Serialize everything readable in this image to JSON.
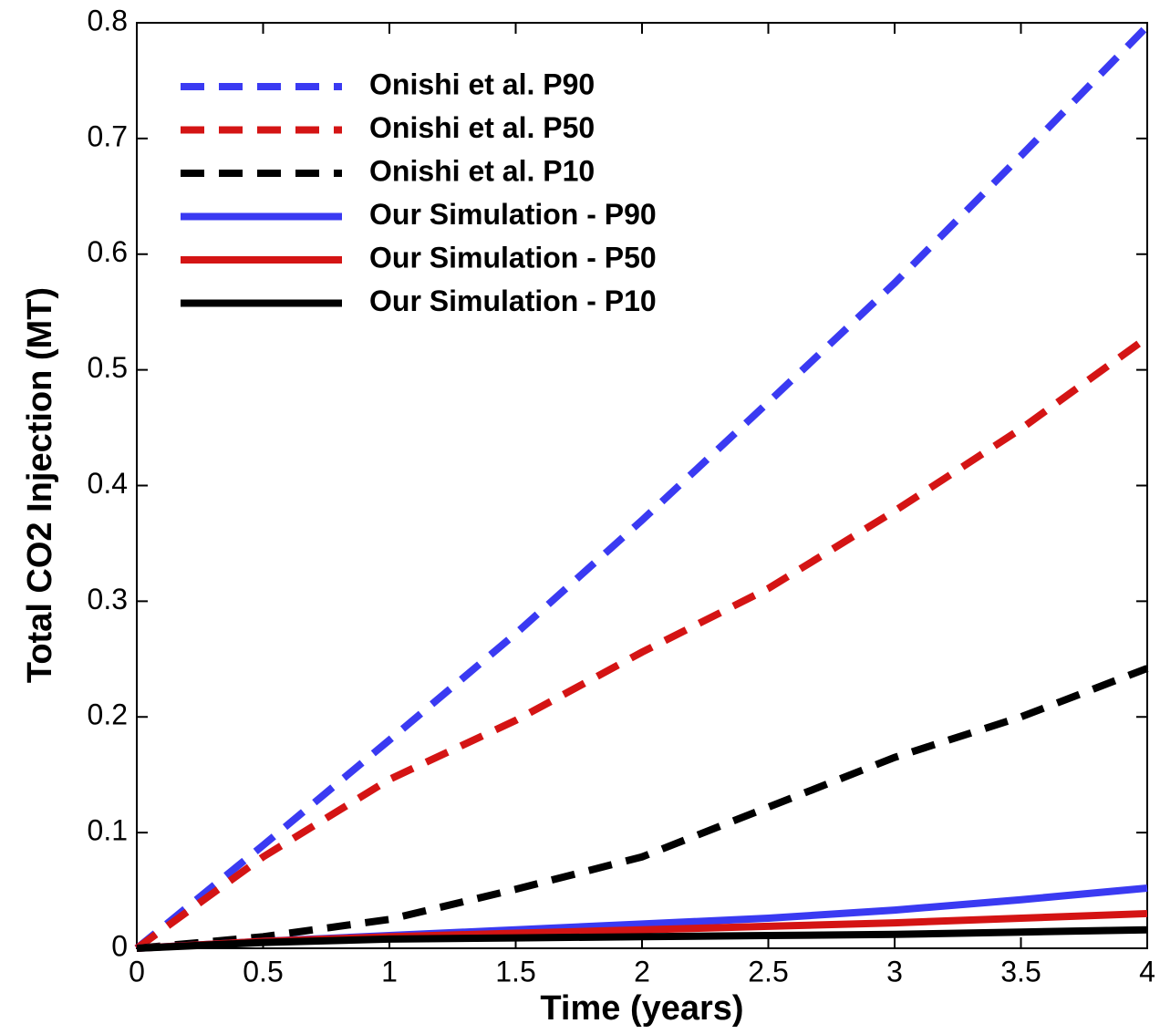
{
  "chart_data": {
    "type": "line",
    "x_label": "Time (years)",
    "y_label": "Total CO2 Injection (MT)",
    "x": [
      0,
      0.5,
      1,
      1.5,
      2,
      2.5,
      3,
      3.5,
      4
    ],
    "series": [
      {
        "name": "Onishi et al. P90",
        "color": "#3a3af2",
        "style": "dashed",
        "values": [
          0,
          0.089,
          0.18,
          0.272,
          0.37,
          0.472,
          0.575,
          0.685,
          0.797
        ]
      },
      {
        "name": "Onishi et al. P50",
        "color": "#d41414",
        "style": "dashed",
        "values": [
          0,
          0.079,
          0.146,
          0.197,
          0.256,
          0.311,
          0.378,
          0.449,
          0.528
        ]
      },
      {
        "name": "Onishi et al. P10",
        "color": "#000000",
        "style": "dashed",
        "values": [
          0,
          0.01,
          0.025,
          0.051,
          0.079,
          0.122,
          0.165,
          0.2,
          0.242
        ]
      },
      {
        "name": "Our Simulation - P90",
        "color": "#3a3af2",
        "style": "solid",
        "values": [
          0,
          0.006,
          0.011,
          0.016,
          0.021,
          0.026,
          0.033,
          0.042,
          0.052
        ]
      },
      {
        "name": "Our Simulation - P50",
        "color": "#d41414",
        "style": "solid",
        "values": [
          0,
          0.006,
          0.01,
          0.013,
          0.016,
          0.019,
          0.022,
          0.026,
          0.03
        ]
      },
      {
        "name": "Our Simulation - P10",
        "color": "#000000",
        "style": "solid",
        "values": [
          0,
          0.005,
          0.008,
          0.009,
          0.01,
          0.011,
          0.012,
          0.014,
          0.016
        ]
      }
    ],
    "xlim": [
      0,
      4
    ],
    "xticks": [
      0,
      0.5,
      1,
      1.5,
      2,
      2.5,
      3,
      3.5,
      4
    ],
    "ylim": [
      0,
      0.8
    ],
    "yticks": [
      0,
      0.1,
      0.2,
      0.3,
      0.4,
      0.5,
      0.6,
      0.7,
      0.8
    ],
    "legend": "upper-left"
  }
}
